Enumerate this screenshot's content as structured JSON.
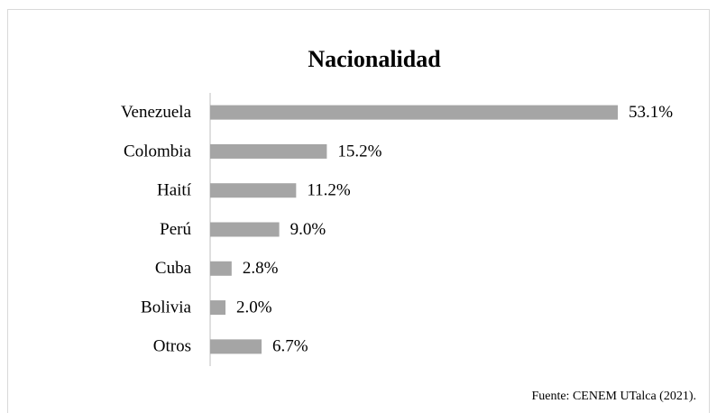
{
  "chart_data": {
    "type": "bar",
    "orientation": "horizontal",
    "title": "Nacionalidad",
    "categories": [
      "Venezuela",
      "Colombia",
      "Haití",
      "Perú",
      "Cuba",
      "Bolivia",
      "Otros"
    ],
    "values": [
      53.1,
      15.2,
      11.2,
      9.0,
      2.8,
      2.0,
      6.7
    ],
    "value_labels": [
      "53.1%",
      "15.2%",
      "11.2%",
      "9.0%",
      "2.8%",
      "2.0%",
      "6.7%"
    ],
    "color": "#a5a5a5",
    "source": "Fuente: CENEM UTalca (2021)."
  }
}
